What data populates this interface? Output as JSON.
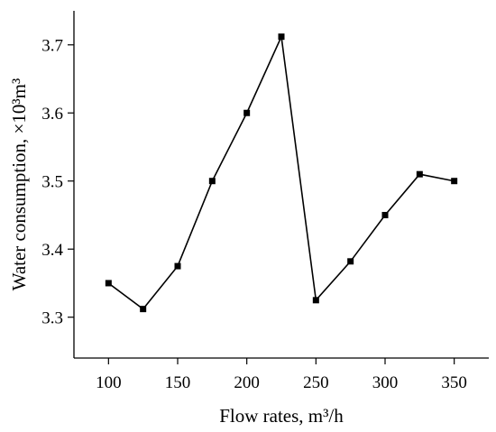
{
  "chart_data": {
    "type": "line",
    "xlabel": "Flow rates, m³/h",
    "ylabel": "Water consumption, ×10³m³",
    "x": [
      100,
      125,
      150,
      175,
      200,
      225,
      250,
      275,
      300,
      325,
      350
    ],
    "series": [
      {
        "values": [
          3.35,
          3.312,
          3.375,
          3.5,
          3.6,
          3.712,
          3.325,
          3.382,
          3.45,
          3.51,
          3.5
        ],
        "color": "#000000",
        "marker": "square"
      }
    ],
    "xlim": [
      75,
      375
    ],
    "ylim": [
      3.24,
      3.75
    ],
    "xticks": [
      100,
      150,
      200,
      250,
      300,
      350
    ],
    "xtick_labels": [
      "100",
      "150",
      "200",
      "250",
      "300",
      "350"
    ],
    "yticks": [
      3.3,
      3.4,
      3.5,
      3.6,
      3.7
    ],
    "ytick_labels": [
      "3.3",
      "3.4",
      "3.5",
      "3.6",
      "3.7"
    ],
    "grid": false,
    "legend": "none"
  }
}
